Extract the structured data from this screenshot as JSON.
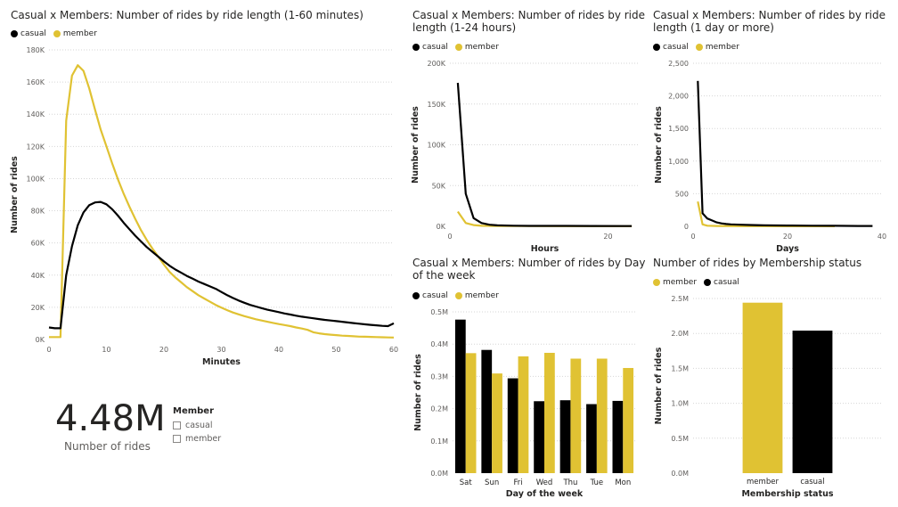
{
  "colors": {
    "casual": "#000000",
    "member": "#E0C233",
    "grid": "#d6d6d6"
  },
  "card": {
    "value": "4.48M",
    "label": "Number of rides"
  },
  "slicer": {
    "title": "Member",
    "items": [
      "casual",
      "member"
    ]
  },
  "chart_data": [
    {
      "id": "minutes",
      "type": "line",
      "title": "Casual x Members: Number of rides by ride length (1-60 minutes)",
      "xlabel": "Minutes",
      "ylabel": "Number of rides",
      "xlim": [
        0,
        60
      ],
      "ylim": [
        0,
        180000
      ],
      "xticks": [
        0,
        10,
        20,
        30,
        40,
        50,
        60
      ],
      "yticks": [
        0,
        20000,
        40000,
        60000,
        80000,
        100000,
        120000,
        140000,
        160000,
        180000
      ],
      "yticklabels": [
        "0K",
        "20K",
        "40K",
        "60K",
        "80K",
        "100K",
        "120K",
        "140K",
        "160K",
        "180K"
      ],
      "legend": [
        "casual",
        "member"
      ],
      "series": [
        {
          "name": "casual",
          "points": [
            [
              0,
              7500
            ],
            [
              1,
              7000
            ],
            [
              2,
              7000
            ],
            [
              3,
              40000
            ],
            [
              4,
              58000
            ],
            [
              5,
              71000
            ],
            [
              6,
              79000
            ],
            [
              7,
              83500
            ],
            [
              8,
              85200
            ],
            [
              9,
              85500
            ],
            [
              10,
              84000
            ],
            [
              11,
              81000
            ],
            [
              12,
              77000
            ],
            [
              13,
              72500
            ],
            [
              14,
              68500
            ],
            [
              15,
              64500
            ],
            [
              16,
              61000
            ],
            [
              17,
              57500
            ],
            [
              18,
              54500
            ],
            [
              19,
              51500
            ],
            [
              20,
              48500
            ],
            [
              21,
              45800
            ],
            [
              22,
              43500
            ],
            [
              23,
              41500
            ],
            [
              24,
              39500
            ],
            [
              25,
              37800
            ],
            [
              26,
              36000
            ],
            [
              27,
              34500
            ],
            [
              28,
              33000
            ],
            [
              29,
              31500
            ],
            [
              30,
              29500
            ],
            [
              31,
              27500
            ],
            [
              32,
              25800
            ],
            [
              33,
              24200
            ],
            [
              34,
              22800
            ],
            [
              35,
              21500
            ],
            [
              36,
              20500
            ],
            [
              37,
              19500
            ],
            [
              38,
              18500
            ],
            [
              39,
              17800
            ],
            [
              40,
              17000
            ],
            [
              41,
              16200
            ],
            [
              42,
              15500
            ],
            [
              43,
              14800
            ],
            [
              44,
              14200
            ],
            [
              45,
              13700
            ],
            [
              46,
              13200
            ],
            [
              47,
              12700
            ],
            [
              48,
              12200
            ],
            [
              49,
              11800
            ],
            [
              50,
              11400
            ],
            [
              51,
              11000
            ],
            [
              52,
              10600
            ],
            [
              53,
              10200
            ],
            [
              54,
              9800
            ],
            [
              55,
              9400
            ],
            [
              56,
              9100
            ],
            [
              57,
              8800
            ],
            [
              58,
              8500
            ],
            [
              59,
              8300
            ],
            [
              60,
              10000
            ]
          ]
        },
        {
          "name": "member",
          "points": [
            [
              0,
              1500
            ],
            [
              1,
              1500
            ],
            [
              2,
              1500
            ],
            [
              3,
              136000
            ],
            [
              4,
              164000
            ],
            [
              5,
              170500
            ],
            [
              6,
              167000
            ],
            [
              7,
              156000
            ],
            [
              8,
              143000
            ],
            [
              9,
              130500
            ],
            [
              10,
              120000
            ],
            [
              11,
              109500
            ],
            [
              12,
              99500
            ],
            [
              13,
              90500
            ],
            [
              14,
              82500
            ],
            [
              15,
              75000
            ],
            [
              16,
              68000
            ],
            [
              17,
              62000
            ],
            [
              18,
              56500
            ],
            [
              19,
              51500
            ],
            [
              20,
              46500
            ],
            [
              21,
              42000
            ],
            [
              22,
              38500
            ],
            [
              23,
              35500
            ],
            [
              24,
              32500
            ],
            [
              25,
              30000
            ],
            [
              26,
              27500
            ],
            [
              27,
              25500
            ],
            [
              28,
              23500
            ],
            [
              29,
              21500
            ],
            [
              30,
              19800
            ],
            [
              31,
              18200
            ],
            [
              32,
              16800
            ],
            [
              33,
              15600
            ],
            [
              34,
              14500
            ],
            [
              35,
              13500
            ],
            [
              36,
              12600
            ],
            [
              37,
              11800
            ],
            [
              38,
              11000
            ],
            [
              39,
              10300
            ],
            [
              40,
              9600
            ],
            [
              41,
              9000
            ],
            [
              42,
              8300
            ],
            [
              43,
              7500
            ],
            [
              44,
              6800
            ],
            [
              45,
              6000
            ],
            [
              46,
              4500
            ],
            [
              47,
              3800
            ],
            [
              48,
              3300
            ],
            [
              49,
              3000
            ],
            [
              50,
              2700
            ],
            [
              51,
              2400
            ],
            [
              52,
              2200
            ],
            [
              53,
              2000
            ],
            [
              54,
              1800
            ],
            [
              55,
              1700
            ],
            [
              56,
              1600
            ],
            [
              57,
              1500
            ],
            [
              58,
              1400
            ],
            [
              59,
              1300
            ],
            [
              60,
              1200
            ]
          ]
        }
      ]
    },
    {
      "id": "hours",
      "type": "line",
      "title": "Casual x Members: Number of rides by ride length (1-24 hours)",
      "xlabel": "Hours",
      "ylabel": "Number of rides",
      "xlim": [
        0,
        24
      ],
      "ylim": [
        0,
        200000
      ],
      "xticks": [
        0,
        20
      ],
      "yticks": [
        0,
        50000,
        100000,
        150000,
        200000
      ],
      "yticklabels": [
        "0K",
        "50K",
        "100K",
        "150K",
        "200K"
      ],
      "legend": [
        "casual",
        "member"
      ],
      "series": [
        {
          "name": "casual",
          "points": [
            [
              1,
              176000
            ],
            [
              2,
              40000
            ],
            [
              3,
              10000
            ],
            [
              4,
              4000
            ],
            [
              5,
              2000
            ],
            [
              6,
              1200
            ],
            [
              8,
              800
            ],
            [
              10,
              600
            ],
            [
              14,
              500
            ],
            [
              18,
              400
            ],
            [
              22,
              350
            ],
            [
              23,
              300
            ]
          ]
        },
        {
          "name": "member",
          "points": [
            [
              1,
              18000
            ],
            [
              2,
              4000
            ],
            [
              3,
              1500
            ],
            [
              4,
              700
            ],
            [
              6,
              400
            ],
            [
              10,
              300
            ],
            [
              14,
              250
            ],
            [
              18,
              200
            ],
            [
              23,
              150
            ]
          ]
        }
      ]
    },
    {
      "id": "days",
      "type": "line",
      "title": "Casual x Members: Number of rides by ride length (1 day or more)",
      "xlabel": "Days",
      "ylabel": "Number of rides",
      "xlim": [
        0,
        40
      ],
      "ylim": [
        0,
        2500
      ],
      "xticks": [
        0,
        20,
        40
      ],
      "yticks": [
        0,
        500,
        1000,
        1500,
        2000,
        2500
      ],
      "yticklabels": [
        "0",
        "500",
        "1,000",
        "1,500",
        "2,000",
        "2,500"
      ],
      "legend": [
        "casual",
        "member"
      ],
      "series": [
        {
          "name": "casual",
          "points": [
            [
              1,
              2230
            ],
            [
              2,
              200
            ],
            [
              3,
              120
            ],
            [
              4,
              90
            ],
            [
              5,
              60
            ],
            [
              6,
              45
            ],
            [
              7,
              35
            ],
            [
              8,
              30
            ],
            [
              10,
              25
            ],
            [
              12,
              20
            ],
            [
              15,
              15
            ],
            [
              20,
              12
            ],
            [
              25,
              10
            ],
            [
              30,
              8
            ],
            [
              35,
              6
            ],
            [
              38,
              5
            ]
          ]
        },
        {
          "name": "member",
          "points": [
            [
              1,
              380
            ],
            [
              2,
              30
            ],
            [
              3,
              10
            ],
            [
              5,
              5
            ],
            [
              10,
              3
            ],
            [
              20,
              2
            ],
            [
              30,
              1
            ]
          ]
        }
      ]
    },
    {
      "id": "weekday",
      "type": "bar",
      "title": "Casual x Members: Number of rides by Day of the week",
      "xlabel": "Day of the week",
      "ylabel": "Number of rides",
      "ylim": [
        0,
        500000
      ],
      "yticks": [
        0,
        100000,
        200000,
        300000,
        400000,
        500000
      ],
      "yticklabels": [
        "0.0M",
        "0.1M",
        "0.2M",
        "0.3M",
        "0.4M",
        "0.5M"
      ],
      "legend": [
        "casual",
        "member"
      ],
      "categories": [
        "Sat",
        "Sun",
        "Fri",
        "Wed",
        "Thu",
        "Tue",
        "Mon"
      ],
      "series": [
        {
          "name": "casual",
          "values": [
            476000,
            382000,
            294000,
            223000,
            226000,
            214000,
            224000
          ]
        },
        {
          "name": "member",
          "values": [
            372000,
            309000,
            362000,
            373000,
            355000,
            355000,
            326000
          ]
        }
      ]
    },
    {
      "id": "membership",
      "type": "bar",
      "title": "Number of rides by Membership status",
      "xlabel": "Membership status",
      "ylabel": "Number of rides",
      "ylim": [
        0,
        2500000
      ],
      "yticks": [
        0,
        500000,
        1000000,
        1500000,
        2000000,
        2500000
      ],
      "yticklabels": [
        "0.0M",
        "0.5M",
        "1.0M",
        "1.5M",
        "2.0M",
        "2.5M"
      ],
      "legend": [
        "member",
        "casual"
      ],
      "categories": [
        "member",
        "casual"
      ],
      "values": [
        2440000,
        2040000
      ]
    }
  ]
}
